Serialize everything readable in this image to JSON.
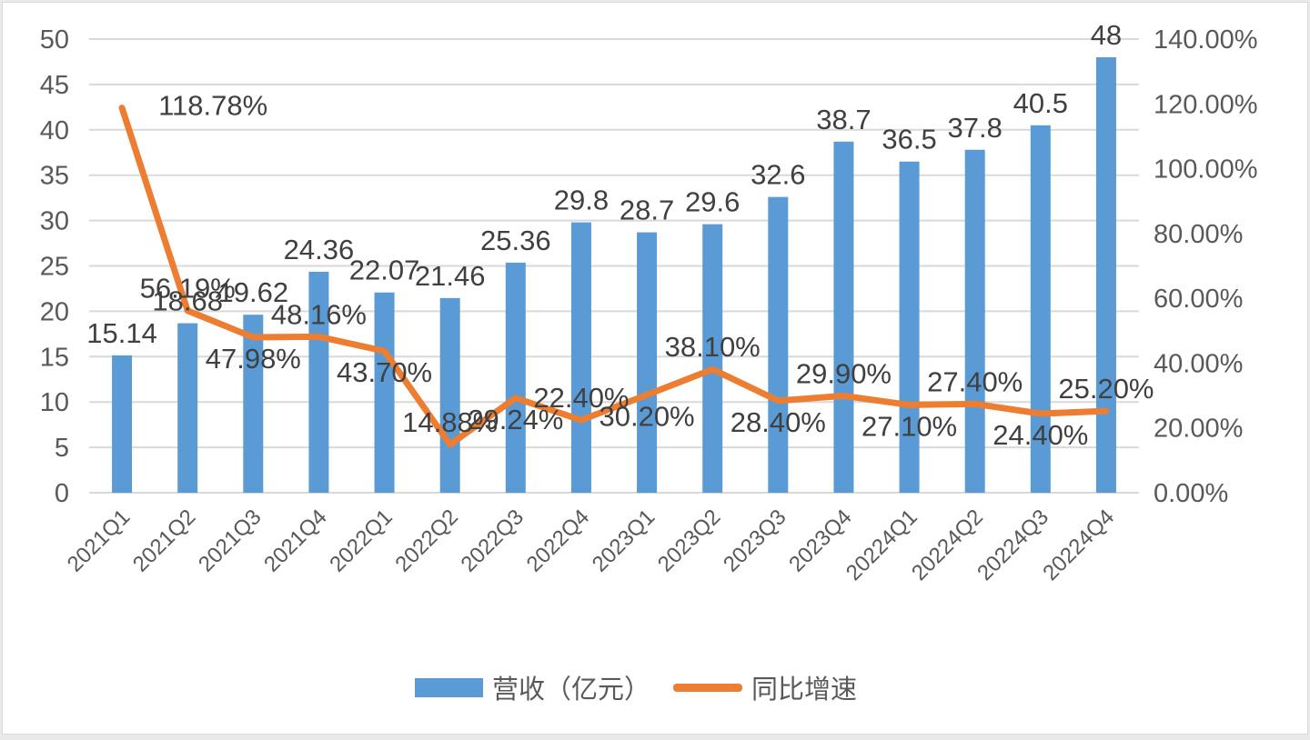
{
  "chart_data": {
    "type": "bar+line",
    "title": "",
    "categories": [
      "2021Q1",
      "2021Q2",
      "2021Q3",
      "2021Q4",
      "2022Q1",
      "2022Q2",
      "2022Q3",
      "2022Q4",
      "2023Q1",
      "2023Q2",
      "2023Q3",
      "2023Q4",
      "20224Q1",
      "20224Q2",
      "20224Q3",
      "20224Q4"
    ],
    "series": [
      {
        "name": "营收（亿元）",
        "type": "bar",
        "axis": "left",
        "color": "#5b9bd5",
        "values": [
          15.14,
          18.68,
          19.62,
          24.36,
          22.07,
          21.46,
          25.36,
          29.8,
          28.7,
          29.6,
          32.6,
          38.7,
          36.5,
          37.8,
          40.5,
          48
        ],
        "labels": [
          "15.14",
          "18.68",
          "19.62",
          "24.36",
          "22.07",
          "21.46",
          "25.36",
          "29.8",
          "28.7",
          "29.6",
          "32.6",
          "38.7",
          "36.5",
          "37.8",
          "40.5",
          "48"
        ]
      },
      {
        "name": "同比增速",
        "type": "line",
        "axis": "right",
        "color": "#ed7d31",
        "values": [
          118.78,
          56.19,
          47.98,
          48.16,
          43.7,
          14.88,
          29.24,
          22.4,
          30.2,
          38.1,
          28.4,
          29.9,
          27.1,
          27.4,
          24.4,
          25.2
        ],
        "labels": [
          "118.78%",
          "56.19%",
          "47.98%",
          "48.16%",
          "43.70%",
          "14.88%",
          "29.24%",
          "22.40%",
          "30.20%",
          "38.10%",
          "28.40%",
          "29.90%",
          "27.10%",
          "27.40%",
          "24.40%",
          "25.20%"
        ]
      }
    ],
    "left_axis": {
      "min": 0,
      "max": 50,
      "step": 5,
      "ticks": [
        "0",
        "5",
        "10",
        "15",
        "20",
        "25",
        "30",
        "35",
        "40",
        "45",
        "50"
      ]
    },
    "right_axis": {
      "min": 0,
      "max": 140,
      "step": 20,
      "ticks": [
        "0.00%",
        "20.00%",
        "40.00%",
        "60.00%",
        "80.00%",
        "100.00%",
        "120.00%",
        "140.00%"
      ]
    },
    "xlabel": "",
    "ylabel": "",
    "grid": true,
    "legend_position": "bottom"
  },
  "legend": {
    "bar_label": "营收（亿元）",
    "line_label": "同比增速"
  },
  "colors": {
    "bar": "#5b9bd5",
    "line": "#ed7d31",
    "grid": "#d9d9d9",
    "text": "#595959"
  }
}
